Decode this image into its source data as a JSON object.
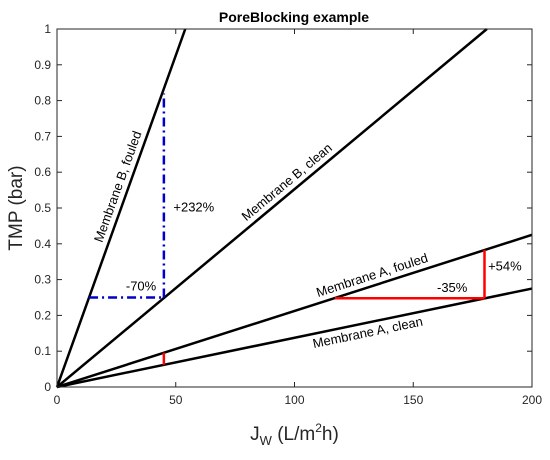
{
  "colors": {
    "axis": "#262626",
    "series_line": "#000000",
    "annotation_blue": "#0000cc",
    "annotation_red": "#ff0000"
  },
  "chart_data": {
    "type": "line",
    "title": "PoreBlocking example",
    "xlabel": {
      "main": "J",
      "sub": "W",
      "unit_prefix": " (L/m",
      "unit_sup": "2",
      "unit_suffix": "h)"
    },
    "ylabel": "TMP (bar)",
    "xlim": [
      0,
      200
    ],
    "ylim": [
      0,
      1
    ],
    "x_ticks": [
      0,
      50,
      100,
      150,
      200
    ],
    "y_ticks": [
      0,
      0.1,
      0.2,
      0.3,
      0.4,
      0.5,
      0.6,
      0.7,
      0.8,
      0.9,
      1
    ],
    "x_tick_labels": [
      "0",
      "50",
      "100",
      "150",
      "200"
    ],
    "y_tick_labels": [
      "0",
      "0.1",
      "0.2",
      "0.3",
      "0.4",
      "0.5",
      "0.6",
      "0.7",
      "0.8",
      "0.9",
      "1"
    ],
    "grid": false,
    "series": [
      {
        "label": "Membrane B, fouled",
        "x": [
          0,
          54
        ],
        "y": [
          0,
          1
        ]
      },
      {
        "label": "Membrane B, clean",
        "x": [
          0,
          181
        ],
        "y": [
          0,
          1
        ]
      },
      {
        "label": "Membrane A, fouled",
        "x": [
          0,
          200
        ],
        "y": [
          0,
          0.425
        ]
      },
      {
        "label": "Membrane A, clean",
        "x": [
          0,
          200
        ],
        "y": [
          0,
          0.275
        ]
      }
    ],
    "annotations": [
      {
        "kind": "blue-dashed",
        "label": "+232%",
        "segments": [
          [
            [
              45,
              0.25
            ],
            [
              45,
              0.82
            ]
          ]
        ],
        "label_at": [
          49,
          0.49
        ]
      },
      {
        "kind": "blue-dashed",
        "label": "-70%",
        "segments": [
          [
            [
              13.5,
              0.25
            ],
            [
              45,
              0.25
            ]
          ]
        ],
        "label_at": [
          29,
          0.27
        ]
      },
      {
        "kind": "red",
        "label": "",
        "segments": [
          [
            [
              45,
              0.062
            ],
            [
              45,
              0.096
            ]
          ]
        ],
        "label_at": null
      },
      {
        "kind": "red",
        "label": "+54%",
        "segments": [
          [
            [
              180,
              0.248
            ],
            [
              180,
              0.383
            ]
          ]
        ],
        "label_at": [
          181.5,
          0.326
        ]
      },
      {
        "kind": "red",
        "label": "-35%",
        "segments": [
          [
            [
              117,
              0.248
            ],
            [
              180,
              0.248
            ]
          ]
        ],
        "label_at": [
          160,
          0.266
        ]
      }
    ]
  }
}
